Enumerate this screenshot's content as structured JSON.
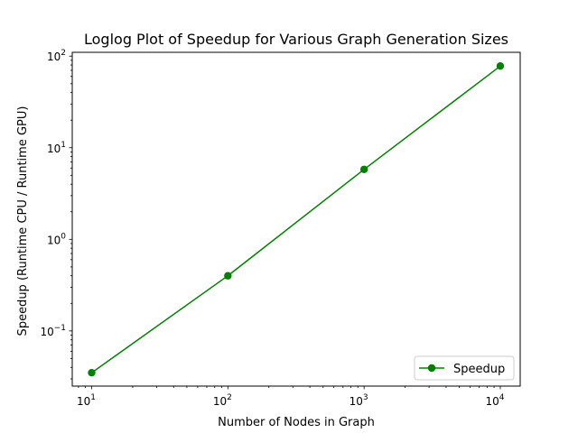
{
  "chart_data": {
    "type": "line",
    "title": "Loglog Plot of Speedup for Various Graph Generation Sizes",
    "xlabel": "Number of Nodes in Graph",
    "ylabel": "Speedup (Runtime CPU / Runtime GPU)",
    "xscale": "log",
    "yscale": "log",
    "xlim": [
      7.2,
      14000
    ],
    "ylim": [
      0.025,
      110
    ],
    "x_ticks": [
      {
        "value": 10,
        "base": "10",
        "exp": "1"
      },
      {
        "value": 100,
        "base": "10",
        "exp": "2"
      },
      {
        "value": 1000,
        "base": "10",
        "exp": "3"
      },
      {
        "value": 10000,
        "base": "10",
        "exp": "4"
      }
    ],
    "y_ticks": [
      {
        "value": 0.1,
        "base": "10",
        "exp": "−1"
      },
      {
        "value": 1,
        "base": "10",
        "exp": "0"
      },
      {
        "value": 10,
        "base": "10",
        "exp": "1"
      },
      {
        "value": 100,
        "base": "10",
        "exp": "2"
      }
    ],
    "grid": false,
    "legend_position": "bottom-right",
    "series": [
      {
        "name": "Speedup",
        "color": "#008000",
        "marker": "circle",
        "x": [
          10,
          100,
          1000,
          10000
        ],
        "y": [
          0.035,
          0.4,
          5.8,
          78
        ]
      }
    ]
  }
}
